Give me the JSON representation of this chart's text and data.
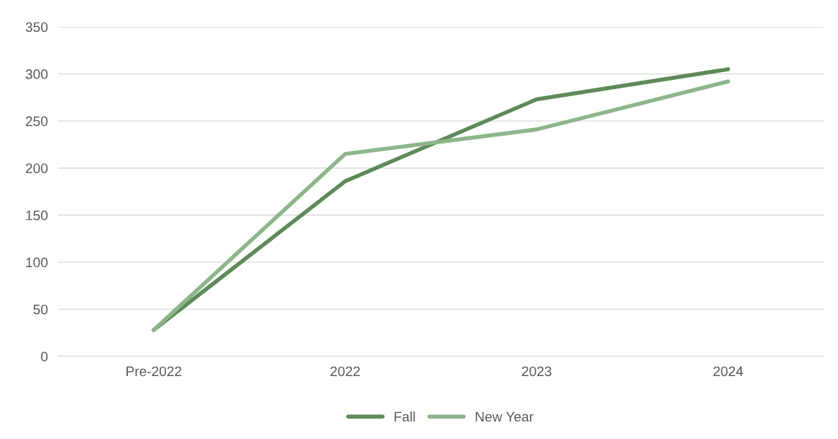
{
  "chart_data": {
    "type": "line",
    "categories": [
      "Pre-2022",
      "2022",
      "2023",
      "2024"
    ],
    "series": [
      {
        "name": "Fall",
        "color": "#5e8a5a",
        "values": [
          28,
          186,
          273,
          305
        ]
      },
      {
        "name": "New Year",
        "color": "#8db58a",
        "values": [
          28,
          215,
          241,
          292
        ]
      }
    ],
    "ylim": [
      0,
      350
    ],
    "yticks": [
      0,
      50,
      100,
      150,
      200,
      250,
      300,
      350
    ],
    "grid": "y",
    "legend": "bottom",
    "marker": "none",
    "line_style": "solid"
  }
}
